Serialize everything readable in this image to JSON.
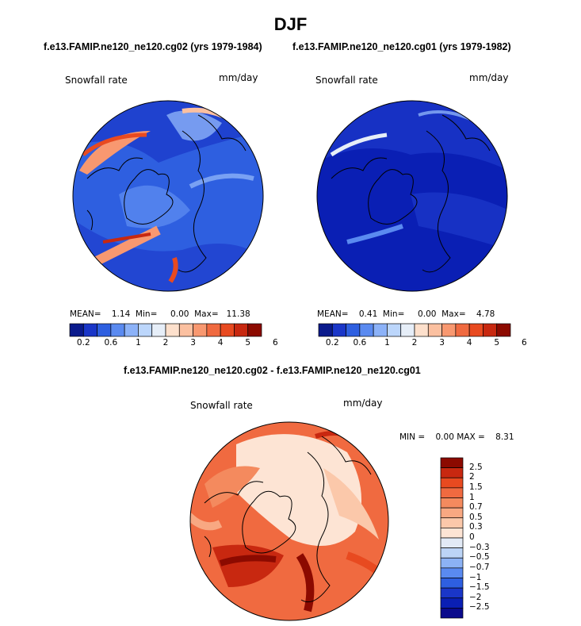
{
  "figure": {
    "title": "DJF",
    "case1_title": "f.e13.FAMIP.ne120_ne120.cg02 (yrs 1979-1984)",
    "case2_title": "f.e13.FAMIP.ne120_ne120.cg01 (yrs 1979-1982)",
    "diff_title": "f.e13.FAMIP.ne120_ne120.cg02 - f.e13.FAMIP.ne120_ne120.cg01"
  },
  "panels": [
    {
      "id": "case1",
      "variable": "Snowfall rate",
      "units": "mm/day",
      "stats": "MEAN=    1.14  Min=     0.00  Max=   11.38",
      "dominant_color": "#2f5fe0"
    },
    {
      "id": "case2",
      "variable": "Snowfall rate",
      "units": "mm/day",
      "stats": "MEAN=    0.41  Min=     0.00  Max=    4.78",
      "dominant_color": "#0a1fb4"
    },
    {
      "id": "diff",
      "variable": "Snowfall rate",
      "units": "mm/day",
      "stats": "MIN =    0.00 MAX =    8.31",
      "dominant_color": "#f07848"
    }
  ],
  "colorbar_horizontal": {
    "colors": [
      "#0a1a8c",
      "#1a36c8",
      "#2e5fe0",
      "#5a8af0",
      "#8cb2f8",
      "#bcd6fb",
      "#e6eef8",
      "#fde0cc",
      "#fbc0a0",
      "#f89870",
      "#f06a40",
      "#e84a20",
      "#c82810",
      "#8c0a00"
    ],
    "ticks": [
      "0.2",
      "0.6",
      "1",
      "2",
      "3",
      "4",
      "5",
      "6"
    ],
    "tick_boundaries": [
      1,
      3,
      5,
      7,
      9,
      11,
      13,
      15
    ]
  },
  "colorbar_vertical": {
    "colors_top_to_bottom": [
      "#8c0a00",
      "#c82810",
      "#e84a20",
      "#f06a40",
      "#f48a5e",
      "#f8a882",
      "#fbc8aa",
      "#fde4d4",
      "#e2eaf6",
      "#bcd4f6",
      "#8cb2f4",
      "#5a8af0",
      "#2e5fe0",
      "#1a36c8",
      "#0a1fb4",
      "#0a0a8c"
    ],
    "ticks": [
      "2.5",
      "2",
      "1.5",
      "1",
      "0.7",
      "0.5",
      "0.3",
      "0",
      "−0.3",
      "−0.5",
      "−0.7",
      "−1",
      "−1.5",
      "−2",
      "−2.5"
    ]
  },
  "maps": {
    "projection": "polar stereographic (north)",
    "coastlines": true
  }
}
